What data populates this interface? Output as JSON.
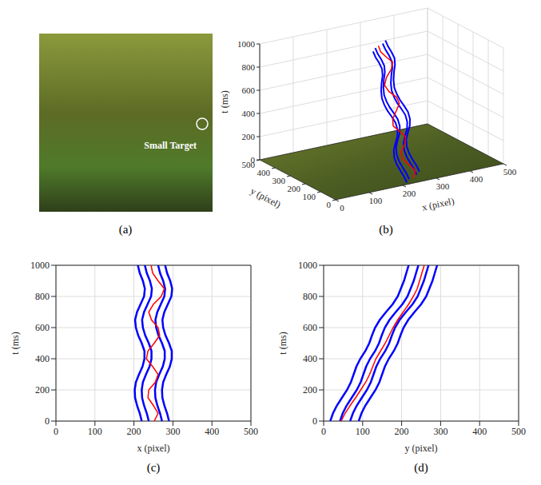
{
  "chart_data": [
    {
      "type": "image",
      "panel_label": "(a)",
      "annotation": "Small Target"
    },
    {
      "type": "line3d",
      "panel_label": "(b)",
      "xlabel": "x (pixel)",
      "ylabel": "y (pixel)",
      "zlabel": "t (ms)",
      "xlim": [
        0,
        500
      ],
      "xticks": [
        0,
        100,
        200,
        300,
        400,
        500
      ],
      "ylim": [
        0,
        500
      ],
      "yticks": [
        0,
        100,
        200,
        300,
        400,
        500
      ],
      "zlim": [
        0,
        1000
      ],
      "zticks": [
        0,
        200,
        400,
        600,
        800,
        1000
      ],
      "grid": true,
      "t": [
        0,
        50,
        100,
        150,
        200,
        250,
        300,
        350,
        400,
        450,
        500,
        550,
        600,
        650,
        700,
        750,
        800,
        850,
        900,
        950,
        1000
      ],
      "series": [
        {
          "color": "#0000ff",
          "x": [
            220,
            215,
            208,
            203,
            202,
            205,
            213,
            222,
            227,
            227,
            220,
            211,
            205,
            203,
            208,
            217,
            226,
            228,
            223,
            215,
            210
          ],
          "y": [
            17,
            24,
            34,
            47,
            60,
            70,
            77,
            84,
            94,
            107,
            117,
            124,
            132,
            144,
            160,
            177,
            190,
            198,
            206,
            212,
            218
          ]
        },
        {
          "color": "#0000ff",
          "x": [
            238,
            233,
            226,
            221,
            220,
            223,
            231,
            240,
            245,
            245,
            238,
            229,
            223,
            221,
            226,
            235,
            244,
            246,
            241,
            233,
            228
          ],
          "y": [
            42,
            49,
            59,
            72,
            85,
            95,
            102,
            109,
            119,
            132,
            142,
            149,
            157,
            169,
            185,
            202,
            215,
            223,
            231,
            237,
            243
          ]
        },
        {
          "color": "#0000ff",
          "x": [
            272,
            267,
            260,
            255,
            254,
            257,
            265,
            274,
            279,
            279,
            272,
            263,
            257,
            255,
            260,
            269,
            278,
            280,
            275,
            267,
            262
          ],
          "y": [
            68,
            75,
            85,
            98,
            111,
            121,
            128,
            135,
            145,
            158,
            168,
            175,
            183,
            195,
            211,
            228,
            241,
            249,
            257,
            263,
            269
          ]
        },
        {
          "color": "#0000ff",
          "x": [
            290,
            285,
            278,
            273,
            272,
            275,
            283,
            292,
            297,
            297,
            290,
            281,
            275,
            273,
            278,
            287,
            296,
            298,
            293,
            285,
            280
          ],
          "y": [
            90,
            97,
            107,
            120,
            133,
            143,
            150,
            157,
            167,
            180,
            190,
            197,
            205,
            217,
            233,
            250,
            263,
            271,
            279,
            285,
            291
          ]
        },
        {
          "color": "#ff0000",
          "x": [
            252,
            262,
            250,
            236,
            238,
            255,
            262,
            248,
            232,
            236,
            252,
            266,
            262,
            245,
            238,
            250,
            270,
            278,
            262,
            248,
            244
          ],
          "y": [
            45,
            55,
            68,
            82,
            95,
            108,
            118,
            126,
            134,
            146,
            158,
            168,
            178,
            190,
            204,
            218,
            230,
            240,
            246,
            252,
            258
          ]
        }
      ]
    },
    {
      "type": "line",
      "panel_label": "(c)",
      "xlabel": "x (pixel)",
      "ylabel": "t (ms)",
      "xlim": [
        0,
        500
      ],
      "xticks": [
        0,
        100,
        200,
        300,
        400,
        500
      ],
      "ylim": [
        0,
        1000
      ],
      "yticks": [
        0,
        200,
        400,
        600,
        800,
        1000
      ],
      "grid": true,
      "y": [
        0,
        50,
        100,
        150,
        200,
        250,
        300,
        350,
        400,
        450,
        500,
        550,
        600,
        650,
        700,
        750,
        800,
        850,
        900,
        950,
        1000
      ],
      "series": [
        {
          "color": "#0000ff",
          "x": [
            220,
            215,
            208,
            203,
            202,
            205,
            213,
            222,
            227,
            227,
            220,
            211,
            205,
            203,
            208,
            217,
            226,
            228,
            223,
            215,
            210
          ]
        },
        {
          "color": "#0000ff",
          "x": [
            238,
            233,
            226,
            221,
            220,
            223,
            231,
            240,
            245,
            245,
            238,
            229,
            223,
            221,
            226,
            235,
            244,
            246,
            241,
            233,
            228
          ]
        },
        {
          "color": "#0000ff",
          "x": [
            272,
            267,
            260,
            255,
            254,
            257,
            265,
            274,
            279,
            279,
            272,
            263,
            257,
            255,
            260,
            269,
            278,
            280,
            275,
            267,
            262
          ]
        },
        {
          "color": "#0000ff",
          "x": [
            290,
            285,
            278,
            273,
            272,
            275,
            283,
            292,
            297,
            297,
            290,
            281,
            275,
            273,
            278,
            287,
            296,
            298,
            293,
            285,
            280
          ]
        },
        {
          "color": "#ff0000",
          "x": [
            252,
            262,
            250,
            236,
            238,
            255,
            262,
            248,
            232,
            236,
            252,
            266,
            262,
            245,
            238,
            250,
            270,
            278,
            262,
            248,
            244
          ]
        }
      ]
    },
    {
      "type": "line",
      "panel_label": "(d)",
      "xlabel": "y (pixel)",
      "ylabel": "t (ms)",
      "xlim": [
        0,
        500
      ],
      "xticks": [
        0,
        100,
        200,
        300,
        400,
        500
      ],
      "ylim": [
        0,
        1000
      ],
      "yticks": [
        0,
        200,
        400,
        600,
        800,
        1000
      ],
      "grid": true,
      "y": [
        0,
        50,
        100,
        150,
        200,
        250,
        300,
        350,
        400,
        450,
        500,
        550,
        600,
        650,
        700,
        750,
        800,
        850,
        900,
        950,
        1000
      ],
      "series": [
        {
          "color": "#0000ff",
          "x": [
            17,
            24,
            34,
            47,
            60,
            70,
            77,
            84,
            94,
            107,
            117,
            124,
            132,
            144,
            160,
            177,
            190,
            198,
            206,
            212,
            218
          ]
        },
        {
          "color": "#0000ff",
          "x": [
            42,
            49,
            59,
            72,
            85,
            95,
            102,
            109,
            119,
            132,
            142,
            149,
            157,
            169,
            185,
            202,
            215,
            223,
            231,
            237,
            243
          ]
        },
        {
          "color": "#0000ff",
          "x": [
            68,
            75,
            85,
            98,
            111,
            121,
            128,
            135,
            145,
            158,
            168,
            175,
            183,
            195,
            211,
            228,
            241,
            249,
            257,
            263,
            269
          ]
        },
        {
          "color": "#0000ff",
          "x": [
            90,
            97,
            107,
            120,
            133,
            143,
            150,
            157,
            167,
            180,
            190,
            197,
            205,
            217,
            233,
            250,
            263,
            271,
            279,
            285,
            291
          ]
        },
        {
          "color": "#ff0000",
          "x": [
            45,
            55,
            68,
            82,
            95,
            108,
            118,
            126,
            134,
            146,
            158,
            168,
            178,
            190,
            204,
            218,
            230,
            240,
            246,
            252,
            258
          ]
        }
      ]
    }
  ]
}
